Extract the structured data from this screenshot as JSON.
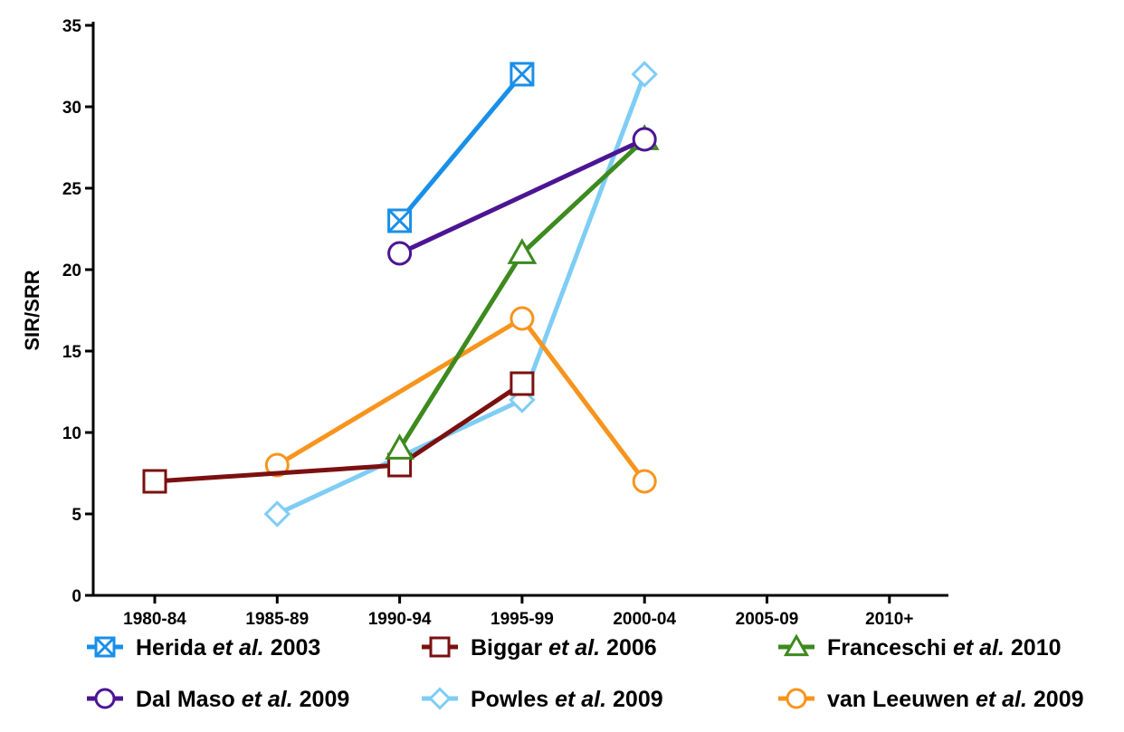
{
  "chart_data": {
    "type": "line",
    "ylabel": "SIR/SRR",
    "xlabel": "",
    "categories": [
      "1980-84",
      "1985-89",
      "1990-94",
      "1995-99",
      "2000-04",
      "2005-09",
      "2010+"
    ],
    "ylim": [
      0,
      35
    ],
    "yticks": [
      0,
      5,
      10,
      15,
      20,
      25,
      30,
      35
    ],
    "grid": false,
    "legend_position": "bottom",
    "series": [
      {
        "name": "Herida et al. 2003",
        "author": "Herida",
        "etal": "et al.",
        "year": "2003",
        "color": "#1a8fe8",
        "marker": "square-x",
        "points": [
          [
            "1990-94",
            23
          ],
          [
            "1995-99",
            32
          ]
        ]
      },
      {
        "name": "Biggar et al. 2006",
        "author": "Biggar",
        "etal": "et al.",
        "year": "2006",
        "color": "#7b1010",
        "marker": "square",
        "points": [
          [
            "1980-84",
            7
          ],
          [
            "1990-94",
            8
          ],
          [
            "1995-99",
            13
          ]
        ]
      },
      {
        "name": "Franceschi et al. 2010",
        "author": "Franceschi",
        "etal": "et al.",
        "year": "2010",
        "color": "#3d8a1e",
        "marker": "triangle",
        "points": [
          [
            "1990-94",
            9
          ],
          [
            "1995-99",
            21
          ],
          [
            "2000-04",
            28
          ]
        ]
      },
      {
        "name": "Dal Maso et al. 2009",
        "author": "Dal Maso",
        "etal": "et al.",
        "year": "2009",
        "color": "#4b1593",
        "marker": "circle",
        "points": [
          [
            "1990-94",
            21
          ],
          [
            "2000-04",
            28
          ]
        ]
      },
      {
        "name": "Powles et al. 2009",
        "author": "Powles",
        "etal": "et al.",
        "year": "2009",
        "color": "#7ecdf5",
        "marker": "diamond",
        "points": [
          [
            "1985-89",
            5
          ],
          [
            "1995-99",
            12
          ],
          [
            "2000-04",
            32
          ]
        ]
      },
      {
        "name": "van Leeuwen et al. 2009",
        "author": "van Leeuwen",
        "etal": "et al.",
        "year": "2009",
        "color": "#f7941d",
        "marker": "circle",
        "points": [
          [
            "1985-89",
            8
          ],
          [
            "1995-99",
            17
          ],
          [
            "2000-04",
            7
          ]
        ]
      }
    ],
    "draw_order": [
      0,
      4,
      5,
      1,
      2,
      3
    ]
  }
}
